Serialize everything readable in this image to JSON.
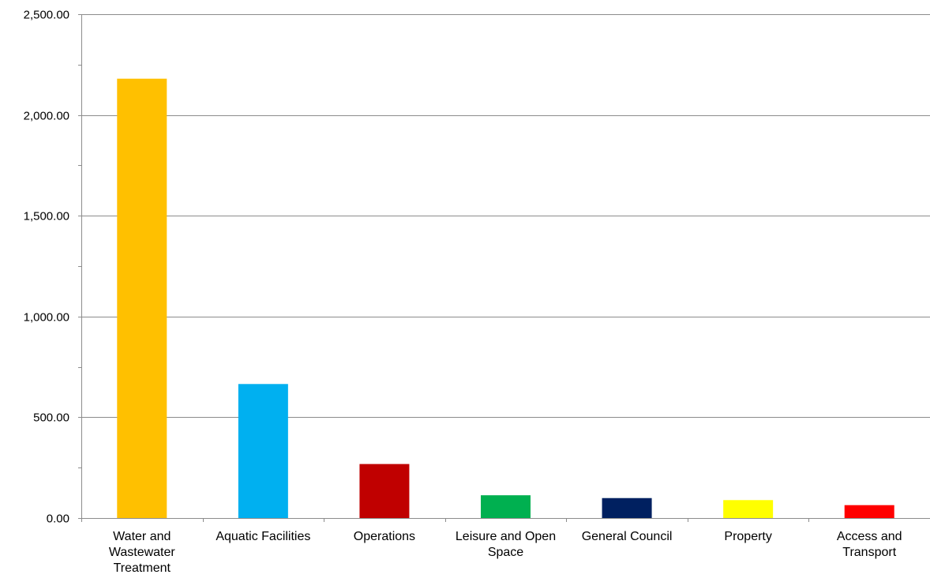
{
  "chart_data": {
    "type": "bar",
    "title": "",
    "xlabel": "",
    "ylabel": "",
    "categories": [
      "Water and Wastewater Treatment",
      "Aquatic Facilities",
      "Operations",
      "Leisure and Open Space",
      "General Council",
      "Property",
      "Access and Transport"
    ],
    "category_lines": [
      [
        "Water and",
        "Wastewater",
        "Treatment"
      ],
      [
        "Aquatic Facilities"
      ],
      [
        "Operations"
      ],
      [
        "Leisure and Open",
        "Space"
      ],
      [
        "General Council"
      ],
      [
        "Property"
      ],
      [
        "Access and",
        "Transport"
      ]
    ],
    "values": [
      2180,
      665,
      268,
      113,
      99,
      89,
      64
    ],
    "bar_colors": [
      "#FFC000",
      "#00B0F0",
      "#C00000",
      "#00B050",
      "#002060",
      "#FFFF00",
      "#FF0000"
    ],
    "ylim": [
      0,
      2500
    ],
    "yticks": [
      0,
      500,
      1000,
      1500,
      2000,
      2500
    ],
    "ytick_labels": [
      "0.00",
      "500.00",
      "1,000.00",
      "1,500.00",
      "2,000.00",
      "2,500.00"
    ],
    "grid": true,
    "legend": "none"
  }
}
